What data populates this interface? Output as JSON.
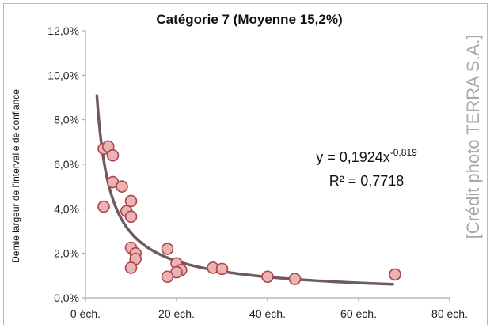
{
  "chart_data": {
    "type": "scatter",
    "title": "Catégorie 7 (Moyenne 15,2%)",
    "xlabel": "",
    "ylabel": "Demie largeur de l'intervalle de confiance",
    "xlim": [
      0,
      80
    ],
    "ylim": [
      0,
      12
    ],
    "x_ticks": [
      0,
      20,
      40,
      60,
      80
    ],
    "x_tick_labels": [
      "0 éch.",
      "20 éch.",
      "40 éch.",
      "60 éch.",
      "80 éch."
    ],
    "y_ticks": [
      0,
      2,
      4,
      6,
      8,
      10,
      12
    ],
    "y_tick_labels": [
      "0,0%",
      "2,0%",
      "4,0%",
      "6,0%",
      "8,0%",
      "10,0%",
      "12,0%"
    ],
    "grid": false,
    "points": [
      {
        "x": 4,
        "y": 6.7
      },
      {
        "x": 5,
        "y": 6.8
      },
      {
        "x": 6,
        "y": 6.4
      },
      {
        "x": 4,
        "y": 4.1
      },
      {
        "x": 6,
        "y": 5.2
      },
      {
        "x": 8,
        "y": 5.0
      },
      {
        "x": 9,
        "y": 3.9
      },
      {
        "x": 10,
        "y": 4.35
      },
      {
        "x": 10,
        "y": 3.65
      },
      {
        "x": 10,
        "y": 2.25
      },
      {
        "x": 11,
        "y": 2.0
      },
      {
        "x": 11,
        "y": 1.75
      },
      {
        "x": 10,
        "y": 1.35
      },
      {
        "x": 18,
        "y": 2.2
      },
      {
        "x": 20,
        "y": 1.55
      },
      {
        "x": 21,
        "y": 1.25
      },
      {
        "x": 20,
        "y": 1.15
      },
      {
        "x": 18,
        "y": 0.95
      },
      {
        "x": 28,
        "y": 1.35
      },
      {
        "x": 30,
        "y": 1.3
      },
      {
        "x": 40,
        "y": 0.95
      },
      {
        "x": 46,
        "y": 0.85
      },
      {
        "x": 68,
        "y": 1.05
      }
    ],
    "trendline": {
      "type": "power",
      "a": 0.1924,
      "b": -0.819,
      "x_range": [
        2.5,
        67.5
      ],
      "equation_prefix": "y = 0,1924x",
      "equation_exponent": "-0,819",
      "r2_label": "R² = 0,7718"
    },
    "credit": "[Crédit photo TERRA S.A.]",
    "colors": {
      "marker_fill": "#e8b4b4",
      "marker_stroke": "#b0434a",
      "trend": "#6e5a63",
      "axis": "#9a9a9a"
    }
  }
}
